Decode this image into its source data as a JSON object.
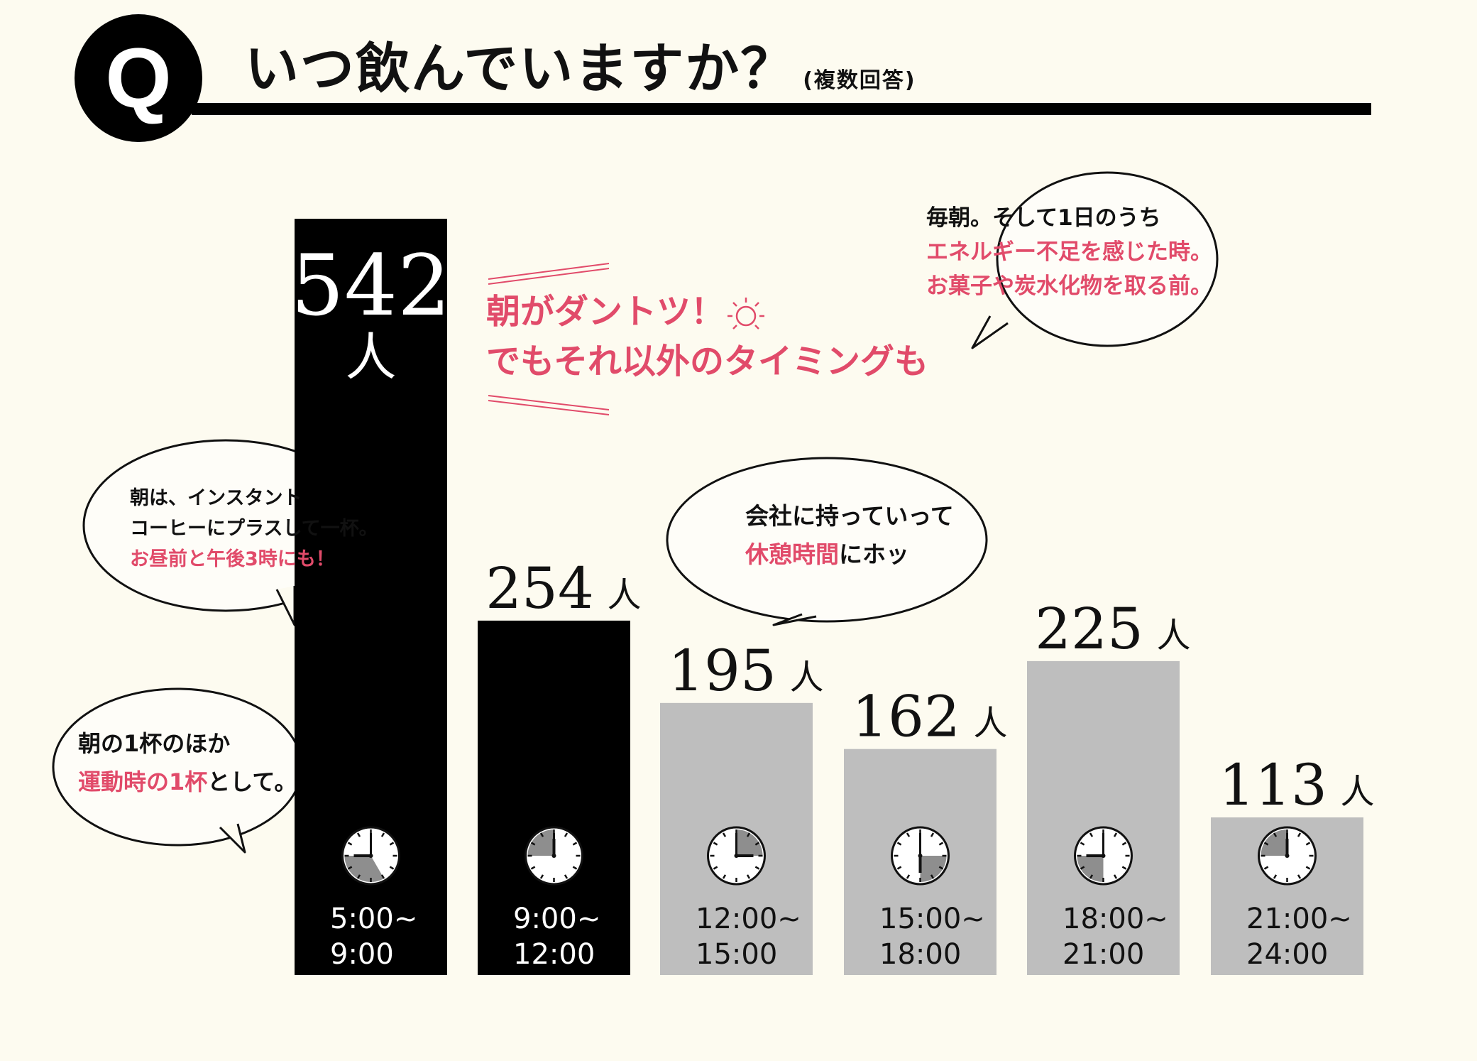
{
  "header": {
    "q_mark": "Q",
    "question": "いつ飲んでいますか？",
    "note": "(複数回答)"
  },
  "headline": {
    "line1": "朝がダントツ！",
    "line2": "でもそれ以外のタイミングも"
  },
  "bubbles": {
    "morning_top": {
      "line1": "毎朝。そして1日のうち",
      "line2": "エネルギー不足を感じた時。",
      "line3": "お菓子や炭水化物を取る前。"
    },
    "instant": {
      "line1": "朝は、インスタント",
      "line2": "コーヒーにプラスして一杯。",
      "line3": "お昼前と午後3時にも！"
    },
    "exercise": {
      "line1": "朝の1杯のほか",
      "line2_pink": "運動時の1杯",
      "line2_rest": "として。"
    },
    "office": {
      "line1": "会社に持っていって",
      "line2_pink": "休憩時間",
      "line2_rest": "にホッ"
    }
  },
  "chart_data": {
    "type": "bar",
    "categories": [
      "5:00~9:00",
      "9:00~12:00",
      "12:00~15:00",
      "15:00~18:00",
      "18:00~21:00",
      "21:00~24:00"
    ],
    "series": [
      {
        "values": [
          542,
          254,
          195,
          162,
          225,
          113
        ]
      }
    ],
    "unit": "人",
    "value_labels": [
      "542",
      "254",
      "195",
      "162",
      "225",
      "113"
    ],
    "time_labels": [
      [
        "5:00~",
        "9:00"
      ],
      [
        "9:00~",
        "12:00"
      ],
      [
        "12:00~",
        "15:00"
      ],
      [
        "15:00~",
        "18:00"
      ],
      [
        "18:00~",
        "21:00"
      ],
      [
        "21:00~",
        "24:00"
      ]
    ],
    "bar_colors": [
      "#000000",
      "#000000",
      "#bebebe",
      "#bebebe",
      "#bebebe",
      "#bebebe"
    ],
    "clock_hours": [
      [
        5,
        9
      ],
      [
        9,
        12
      ],
      [
        12,
        15
      ],
      [
        15,
        18
      ],
      [
        18,
        21
      ],
      [
        21,
        24
      ]
    ],
    "ylim": [
      0,
      542
    ],
    "grid": false
  },
  "colors": {
    "background": "#fdfbf0",
    "accent_pink": "#e14b6a",
    "bar_dark": "#000000",
    "bar_light": "#bebebe"
  }
}
